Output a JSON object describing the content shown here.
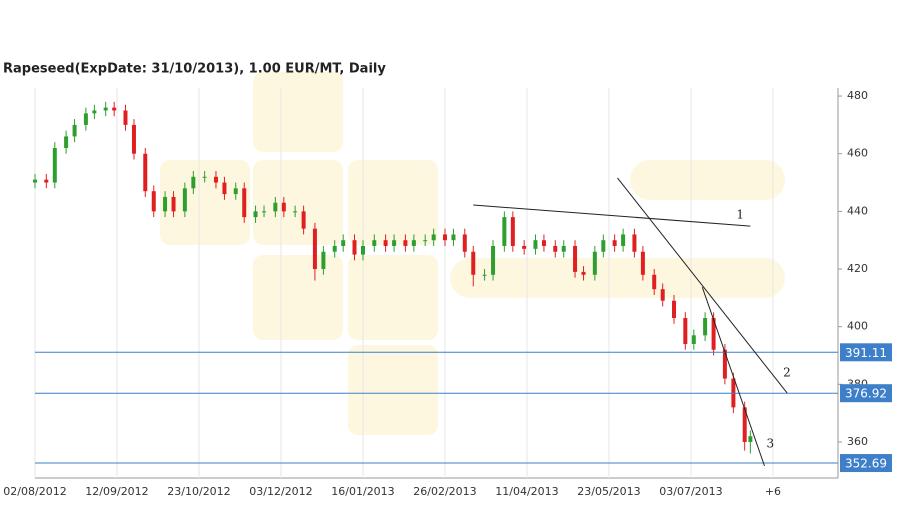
{
  "chart_data": {
    "type": "candlestick",
    "title": "Rapeseed(ExpDate: 31/10/2013), 1.00 EUR/MT, Daily",
    "x": [
      0,
      4,
      7,
      11,
      14,
      18,
      21,
      25,
      28,
      32,
      35,
      39,
      42,
      46,
      49,
      53,
      56,
      60,
      64,
      67,
      71,
      74,
      78,
      81,
      85,
      88,
      92,
      95,
      99,
      102,
      106,
      109,
      113,
      116,
      120,
      124,
      127,
      131,
      134,
      138,
      141,
      145,
      148,
      152,
      155,
      159,
      162,
      166,
      169,
      173,
      177,
      180,
      184,
      187,
      191,
      194,
      198,
      201,
      205,
      208,
      212,
      215,
      219,
      222,
      226,
      230,
      233,
      237,
      240,
      244,
      247,
      251,
      253
    ],
    "open": [
      450,
      451,
      450,
      462,
      466,
      470,
      474,
      475,
      476,
      475,
      470,
      460,
      447,
      440,
      445,
      440,
      448,
      452,
      452,
      450,
      446,
      448,
      438,
      440,
      440,
      443,
      440,
      440,
      434,
      420,
      426,
      428,
      430,
      425,
      428,
      430,
      428,
      430,
      428,
      430,
      430,
      432,
      430,
      432,
      426,
      418,
      418,
      428,
      438,
      428,
      427,
      430,
      428,
      426,
      428,
      419,
      418,
      426,
      430,
      428,
      432,
      426,
      418,
      413,
      409,
      403,
      394,
      397,
      403,
      392,
      382,
      372,
      360
    ],
    "high": [
      453,
      453,
      464,
      468,
      472,
      476,
      477,
      478,
      478,
      477,
      472,
      462,
      449,
      447,
      447,
      450,
      454,
      454,
      454,
      452,
      450,
      450,
      442,
      442,
      445,
      445,
      442,
      442,
      436,
      428,
      430,
      432,
      432,
      430,
      432,
      432,
      432,
      432,
      432,
      432,
      434,
      434,
      434,
      434,
      428,
      420,
      430,
      440,
      440,
      430,
      432,
      432,
      430,
      430,
      430,
      421,
      428,
      432,
      432,
      434,
      434,
      428,
      420,
      415,
      411,
      405,
      399,
      405,
      405,
      394,
      384,
      374,
      364
    ],
    "low": [
      448,
      448,
      448,
      460,
      464,
      468,
      472,
      473,
      473,
      468,
      458,
      445,
      438,
      438,
      438,
      438,
      446,
      450,
      448,
      444,
      444,
      436,
      436,
      438,
      438,
      438,
      438,
      432,
      416,
      418,
      424,
      426,
      423,
      423,
      426,
      426,
      426,
      426,
      426,
      428,
      428,
      428,
      428,
      424,
      414,
      416,
      416,
      426,
      426,
      425,
      425,
      426,
      424,
      424,
      417,
      416,
      416,
      424,
      426,
      426,
      424,
      416,
      411,
      407,
      401,
      392,
      392,
      395,
      390,
      380,
      370,
      357,
      356
    ],
    "close": [
      451,
      450,
      462,
      466,
      470,
      474,
      475,
      476,
      475,
      470,
      460,
      447,
      440,
      445,
      440,
      448,
      452,
      452,
      450,
      446,
      448,
      438,
      440,
      440,
      443,
      440,
      440,
      434,
      420,
      426,
      428,
      430,
      425,
      428,
      430,
      428,
      430,
      428,
      430,
      430,
      432,
      430,
      432,
      426,
      418,
      418,
      428,
      438,
      428,
      427,
      430,
      428,
      426,
      428,
      419,
      418,
      426,
      430,
      428,
      432,
      426,
      418,
      413,
      409,
      403,
      394,
      397,
      403,
      392,
      382,
      372,
      360,
      362
    ],
    "up_color": "#2e9e2e",
    "down_color": "#e02020",
    "xlim": [
      0,
      284
    ],
    "xticks": [
      {
        "value": 0,
        "label": "02/08/2012"
      },
      {
        "value": 29,
        "label": "12/09/2012"
      },
      {
        "value": 58,
        "label": "23/10/2012"
      },
      {
        "value": 87,
        "label": "03/12/2012"
      },
      {
        "value": 116,
        "label": "16/01/2013"
      },
      {
        "value": 145,
        "label": "26/02/2013"
      },
      {
        "value": 174,
        "label": "11/04/2013"
      },
      {
        "value": 203,
        "label": "23/05/2013"
      },
      {
        "value": 232,
        "label": "03/07/2013"
      },
      {
        "value": 261,
        "label": "+6"
      }
    ],
    "ylim": [
      347.5,
      482.8
    ],
    "yticks": [
      360,
      380,
      400,
      420,
      440,
      460,
      480
    ],
    "grid": true,
    "levels": [
      391.11,
      376.92,
      352.69
    ],
    "level_color": "#3d7fc9",
    "trendlines": [
      {
        "label": "1",
        "x": [
          155,
          253
        ],
        "y": [
          442.2,
          434.9
        ]
      },
      {
        "label": "2",
        "x": [
          206,
          266
        ],
        "y": [
          451.6,
          377.0
        ]
      },
      {
        "label": "3",
        "x": [
          236,
          258
        ],
        "y": [
          413.7,
          351.7
        ]
      }
    ]
  }
}
